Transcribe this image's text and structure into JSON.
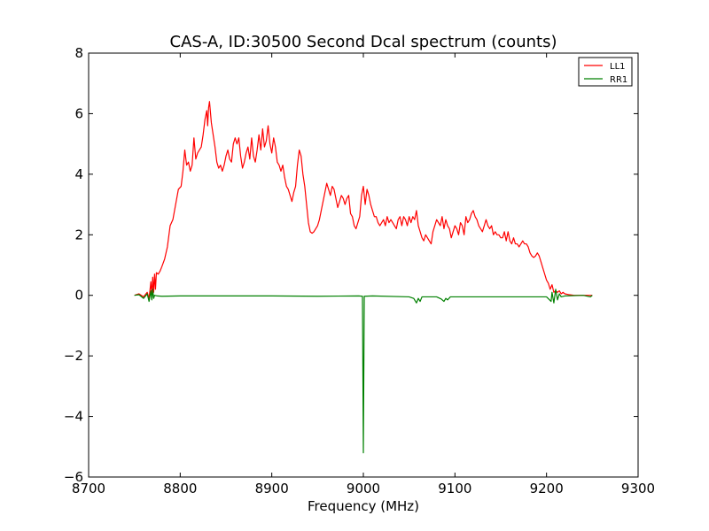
{
  "chart_data": {
    "type": "line",
    "title": "CAS-A, ID:30500 Second Dcal spectrum (counts)",
    "xlabel": "Frequency (MHz)",
    "ylabel": "",
    "xlim": [
      8700,
      9300
    ],
    "ylim": [
      -6,
      8
    ],
    "xticks": [
      "8700",
      "8800",
      "8900",
      "9000",
      "9100",
      "9200",
      "9300"
    ],
    "yticks": [
      "−6",
      "−4",
      "−2",
      "0",
      "2",
      "4",
      "6",
      "8"
    ],
    "grid": false,
    "legend_position": "top-right",
    "series": [
      {
        "name": "LL1",
        "color": "#ff0000",
        "points": [
          [
            8750,
            0.0
          ],
          [
            8755,
            0.05
          ],
          [
            8760,
            -0.05
          ],
          [
            8764,
            0.1
          ],
          [
            8766,
            -0.1
          ],
          [
            8768,
            0.45
          ],
          [
            8769,
            0.0
          ],
          [
            8770,
            0.6
          ],
          [
            8771,
            0.1
          ],
          [
            8772,
            0.7
          ],
          [
            8773,
            0.2
          ],
          [
            8774,
            0.75
          ],
          [
            8776,
            0.7
          ],
          [
            8778,
            0.8
          ],
          [
            8780,
            0.95
          ],
          [
            8783,
            1.2
          ],
          [
            8786,
            1.6
          ],
          [
            8789,
            2.3
          ],
          [
            8792,
            2.5
          ],
          [
            8795,
            3.0
          ],
          [
            8798,
            3.5
          ],
          [
            8801,
            3.6
          ],
          [
            8803,
            4.1
          ],
          [
            8805,
            4.8
          ],
          [
            8807,
            4.3
          ],
          [
            8809,
            4.4
          ],
          [
            8811,
            4.1
          ],
          [
            8813,
            4.3
          ],
          [
            8815,
            5.2
          ],
          [
            8817,
            4.5
          ],
          [
            8819,
            4.7
          ],
          [
            8821,
            4.8
          ],
          [
            8823,
            4.9
          ],
          [
            8825,
            5.3
          ],
          [
            8827,
            5.8
          ],
          [
            8829,
            6.1
          ],
          [
            8830,
            5.6
          ],
          [
            8831,
            6.2
          ],
          [
            8832,
            6.4
          ],
          [
            8834,
            5.7
          ],
          [
            8836,
            5.3
          ],
          [
            8838,
            4.9
          ],
          [
            8840,
            4.4
          ],
          [
            8842,
            4.2
          ],
          [
            8844,
            4.3
          ],
          [
            8846,
            4.1
          ],
          [
            8848,
            4.3
          ],
          [
            8850,
            4.6
          ],
          [
            8852,
            4.8
          ],
          [
            8854,
            4.5
          ],
          [
            8856,
            4.4
          ],
          [
            8858,
            5.0
          ],
          [
            8860,
            5.2
          ],
          [
            8862,
            5.0
          ],
          [
            8864,
            5.2
          ],
          [
            8866,
            4.6
          ],
          [
            8868,
            4.2
          ],
          [
            8870,
            4.4
          ],
          [
            8872,
            4.7
          ],
          [
            8874,
            4.9
          ],
          [
            8876,
            4.5
          ],
          [
            8878,
            5.2
          ],
          [
            8880,
            4.6
          ],
          [
            8882,
            4.4
          ],
          [
            8884,
            4.8
          ],
          [
            8886,
            5.3
          ],
          [
            8888,
            4.8
          ],
          [
            8890,
            5.5
          ],
          [
            8892,
            4.9
          ],
          [
            8894,
            5.1
          ],
          [
            8896,
            5.6
          ],
          [
            8898,
            5.0
          ],
          [
            8900,
            4.7
          ],
          [
            8902,
            5.2
          ],
          [
            8904,
            4.9
          ],
          [
            8906,
            4.4
          ],
          [
            8908,
            4.3
          ],
          [
            8910,
            4.1
          ],
          [
            8912,
            4.3
          ],
          [
            8914,
            3.9
          ],
          [
            8916,
            3.6
          ],
          [
            8918,
            3.5
          ],
          [
            8920,
            3.3
          ],
          [
            8922,
            3.1
          ],
          [
            8924,
            3.4
          ],
          [
            8926,
            3.6
          ],
          [
            8928,
            4.3
          ],
          [
            8930,
            4.8
          ],
          [
            8932,
            4.6
          ],
          [
            8934,
            4.0
          ],
          [
            8936,
            3.6
          ],
          [
            8938,
            3.0
          ],
          [
            8940,
            2.4
          ],
          [
            8942,
            2.1
          ],
          [
            8944,
            2.05
          ],
          [
            8946,
            2.1
          ],
          [
            8948,
            2.2
          ],
          [
            8950,
            2.3
          ],
          [
            8952,
            2.5
          ],
          [
            8954,
            2.8
          ],
          [
            8956,
            3.1
          ],
          [
            8958,
            3.4
          ],
          [
            8960,
            3.7
          ],
          [
            8962,
            3.5
          ],
          [
            8964,
            3.3
          ],
          [
            8966,
            3.6
          ],
          [
            8968,
            3.5
          ],
          [
            8970,
            3.2
          ],
          [
            8972,
            2.9
          ],
          [
            8974,
            3.1
          ],
          [
            8976,
            3.3
          ],
          [
            8978,
            3.2
          ],
          [
            8980,
            3.0
          ],
          [
            8982,
            3.2
          ],
          [
            8984,
            3.3
          ],
          [
            8986,
            2.7
          ],
          [
            8988,
            2.6
          ],
          [
            8990,
            2.3
          ],
          [
            8992,
            2.2
          ],
          [
            8994,
            2.4
          ],
          [
            8996,
            2.6
          ],
          [
            8998,
            3.3
          ],
          [
            9000,
            3.6
          ],
          [
            9002,
            3.0
          ],
          [
            9004,
            3.5
          ],
          [
            9006,
            3.3
          ],
          [
            9008,
            3.0
          ],
          [
            9010,
            2.8
          ],
          [
            9012,
            2.6
          ],
          [
            9014,
            2.6
          ],
          [
            9016,
            2.4
          ],
          [
            9018,
            2.3
          ],
          [
            9020,
            2.4
          ],
          [
            9022,
            2.5
          ],
          [
            9024,
            2.3
          ],
          [
            9026,
            2.6
          ],
          [
            9028,
            2.4
          ],
          [
            9030,
            2.5
          ],
          [
            9032,
            2.4
          ],
          [
            9034,
            2.3
          ],
          [
            9036,
            2.2
          ],
          [
            9038,
            2.5
          ],
          [
            9040,
            2.6
          ],
          [
            9042,
            2.3
          ],
          [
            9044,
            2.6
          ],
          [
            9046,
            2.5
          ],
          [
            9048,
            2.3
          ],
          [
            9050,
            2.6
          ],
          [
            9052,
            2.4
          ],
          [
            9054,
            2.6
          ],
          [
            9056,
            2.5
          ],
          [
            9058,
            2.8
          ],
          [
            9060,
            2.3
          ],
          [
            9062,
            2.1
          ],
          [
            9064,
            1.9
          ],
          [
            9066,
            1.8
          ],
          [
            9068,
            2.0
          ],
          [
            9070,
            1.9
          ],
          [
            9072,
            1.8
          ],
          [
            9074,
            1.7
          ],
          [
            9076,
            2.1
          ],
          [
            9078,
            2.3
          ],
          [
            9080,
            2.5
          ],
          [
            9082,
            2.4
          ],
          [
            9084,
            2.3
          ],
          [
            9086,
            2.6
          ],
          [
            9088,
            2.2
          ],
          [
            9090,
            2.5
          ],
          [
            9092,
            2.3
          ],
          [
            9094,
            2.2
          ],
          [
            9096,
            1.9
          ],
          [
            9098,
            2.1
          ],
          [
            9100,
            2.3
          ],
          [
            9102,
            2.2
          ],
          [
            9104,
            2.0
          ],
          [
            9106,
            2.4
          ],
          [
            9108,
            2.3
          ],
          [
            9110,
            2.0
          ],
          [
            9112,
            2.6
          ],
          [
            9114,
            2.4
          ],
          [
            9116,
            2.5
          ],
          [
            9118,
            2.7
          ],
          [
            9120,
            2.8
          ],
          [
            9122,
            2.6
          ],
          [
            9124,
            2.5
          ],
          [
            9126,
            2.3
          ],
          [
            9128,
            2.2
          ],
          [
            9130,
            2.1
          ],
          [
            9132,
            2.3
          ],
          [
            9134,
            2.5
          ],
          [
            9136,
            2.3
          ],
          [
            9138,
            2.2
          ],
          [
            9140,
            2.3
          ],
          [
            9142,
            2.0
          ],
          [
            9144,
            2.1
          ],
          [
            9146,
            2.0
          ],
          [
            9148,
            2.0
          ],
          [
            9150,
            1.9
          ],
          [
            9152,
            1.9
          ],
          [
            9154,
            2.1
          ],
          [
            9156,
            1.8
          ],
          [
            9158,
            2.1
          ],
          [
            9160,
            1.8
          ],
          [
            9162,
            1.7
          ],
          [
            9164,
            1.9
          ],
          [
            9166,
            1.7
          ],
          [
            9168,
            1.7
          ],
          [
            9170,
            1.6
          ],
          [
            9172,
            1.7
          ],
          [
            9174,
            1.8
          ],
          [
            9176,
            1.7
          ],
          [
            9178,
            1.7
          ],
          [
            9180,
            1.6
          ],
          [
            9182,
            1.4
          ],
          [
            9184,
            1.3
          ],
          [
            9186,
            1.25
          ],
          [
            9188,
            1.3
          ],
          [
            9190,
            1.4
          ],
          [
            9192,
            1.3
          ],
          [
            9194,
            1.1
          ],
          [
            9196,
            0.9
          ],
          [
            9198,
            0.7
          ],
          [
            9200,
            0.5
          ],
          [
            9202,
            0.4
          ],
          [
            9204,
            0.2
          ],
          [
            9206,
            0.35
          ],
          [
            9208,
            0.1
          ],
          [
            9210,
            0.15
          ],
          [
            9212,
            0.1
          ],
          [
            9214,
            0.15
          ],
          [
            9216,
            0.05
          ],
          [
            9218,
            0.1
          ],
          [
            9220,
            0.05
          ],
          [
            9225,
            0.02
          ],
          [
            9230,
            0.0
          ],
          [
            9240,
            0.0
          ],
          [
            9250,
            0.0
          ]
        ]
      },
      {
        "name": "RR1",
        "color": "#008000",
        "points": [
          [
            8750,
            0.0
          ],
          [
            8755,
            0.02
          ],
          [
            8760,
            -0.1
          ],
          [
            8764,
            0.05
          ],
          [
            8766,
            -0.2
          ],
          [
            8768,
            0.15
          ],
          [
            8769,
            -0.15
          ],
          [
            8770,
            0.2
          ],
          [
            8771,
            -0.1
          ],
          [
            8772,
            0.0
          ],
          [
            8775,
            -0.02
          ],
          [
            8780,
            -0.03
          ],
          [
            8800,
            -0.02
          ],
          [
            8850,
            -0.02
          ],
          [
            8900,
            -0.02
          ],
          [
            8950,
            -0.03
          ],
          [
            8995,
            -0.02
          ],
          [
            8999,
            -0.03
          ],
          [
            9000,
            -5.2
          ],
          [
            9001,
            -0.03
          ],
          [
            9010,
            -0.02
          ],
          [
            9050,
            -0.05
          ],
          [
            9055,
            -0.1
          ],
          [
            9058,
            -0.25
          ],
          [
            9060,
            -0.1
          ],
          [
            9062,
            -0.2
          ],
          [
            9064,
            -0.05
          ],
          [
            9080,
            -0.05
          ],
          [
            9085,
            -0.12
          ],
          [
            9088,
            -0.2
          ],
          [
            9090,
            -0.1
          ],
          [
            9092,
            -0.15
          ],
          [
            9095,
            -0.05
          ],
          [
            9150,
            -0.05
          ],
          [
            9200,
            -0.05
          ],
          [
            9205,
            -0.2
          ],
          [
            9206,
            0.1
          ],
          [
            9208,
            -0.25
          ],
          [
            9210,
            0.2
          ],
          [
            9212,
            -0.15
          ],
          [
            9214,
            0.05
          ],
          [
            9216,
            -0.05
          ],
          [
            9220,
            -0.02
          ],
          [
            9240,
            0.0
          ],
          [
            9248,
            -0.05
          ],
          [
            9250,
            0.0
          ]
        ]
      }
    ]
  }
}
